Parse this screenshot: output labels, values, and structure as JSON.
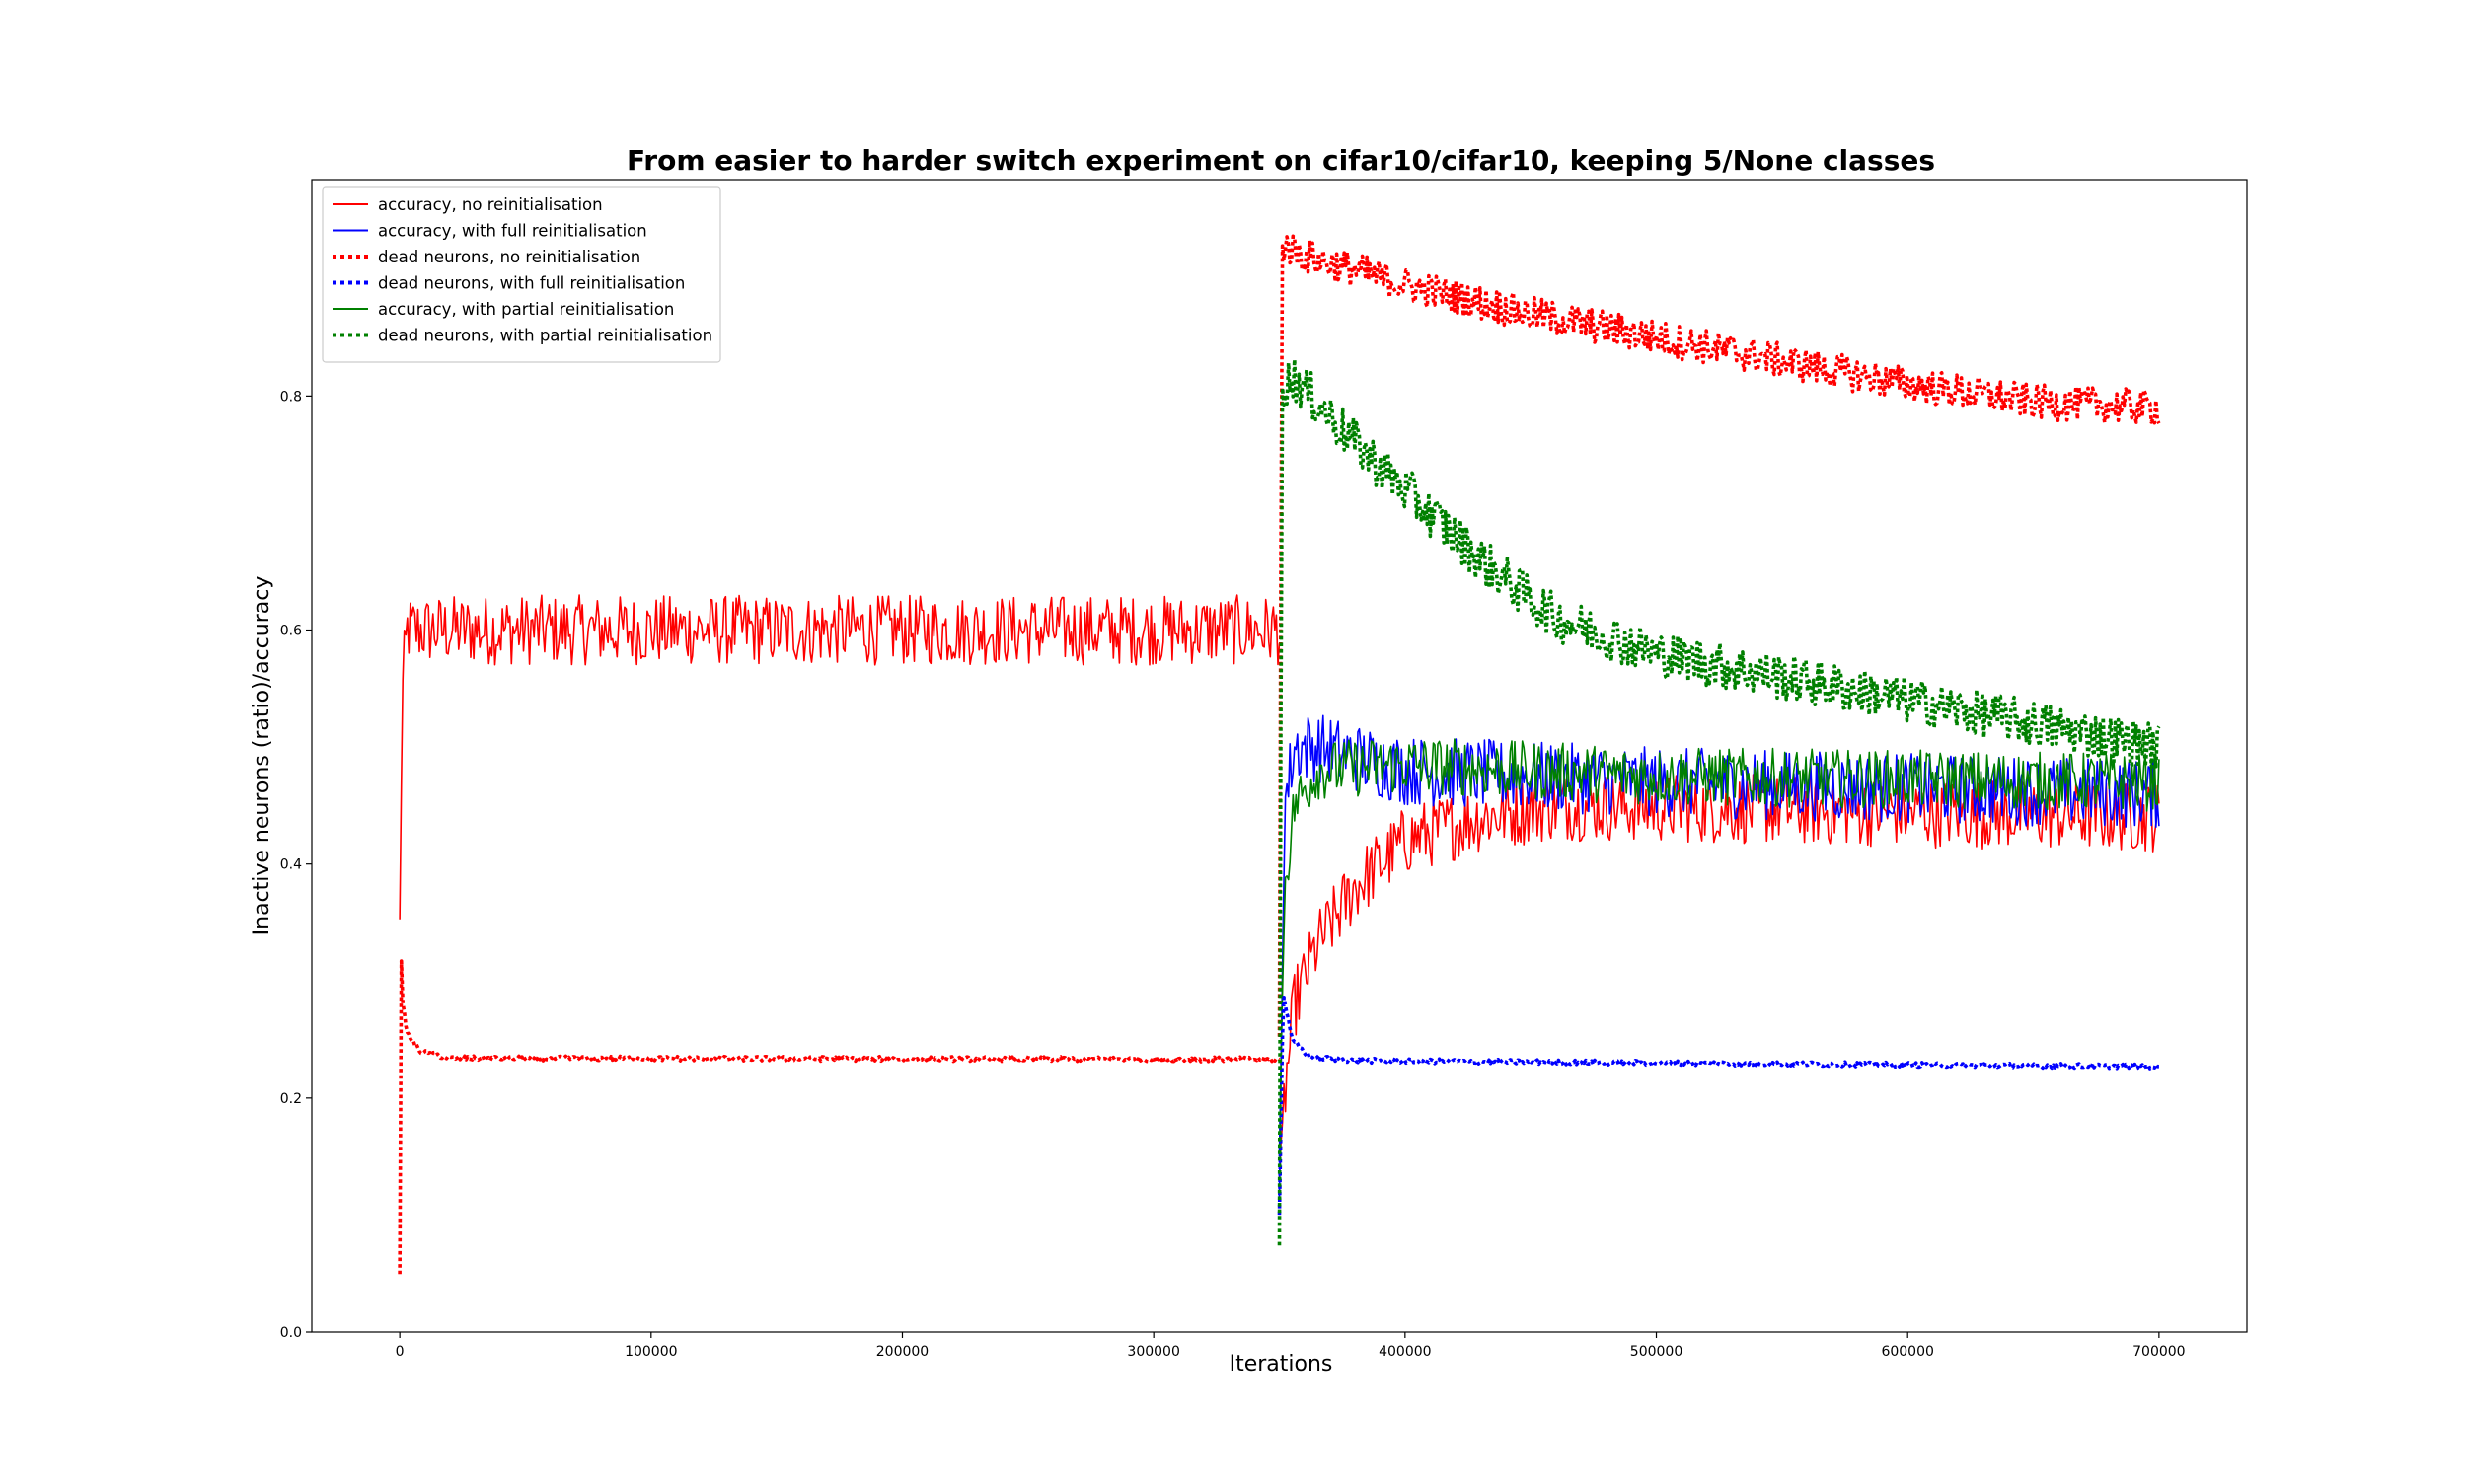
{
  "chart_data": {
    "type": "line",
    "title": "From easier to harder switch experiment on cifar10/cifar10, keeping 5/None classes",
    "xlabel": "Iterations",
    "ylabel": "Inactive neurons (ratio)/accuracy",
    "xlim": [
      -35000,
      735000
    ],
    "ylim": [
      0.0,
      0.985
    ],
    "xticks": [
      0,
      100000,
      200000,
      300000,
      400000,
      500000,
      600000,
      700000
    ],
    "xtick_labels": [
      "0",
      "100000",
      "200000",
      "300000",
      "400000",
      "500000",
      "600000",
      "700000"
    ],
    "yticks": [
      0.0,
      0.2,
      0.4,
      0.6,
      0.8
    ],
    "ytick_labels": [
      "0.0",
      "0.2",
      "0.4",
      "0.6",
      "0.8"
    ],
    "grid": false,
    "legend_position": "top-left",
    "switch_iteration": 350000,
    "series": [
      {
        "name": "accuracy, no reinitialisation",
        "color": "#ff0000",
        "style": "solid",
        "phases": [
          {
            "x_start": 0,
            "x_end": 350000,
            "points": [
              [
                0,
                0.35
              ],
              [
                1000,
                0.55
              ],
              [
                3000,
                0.6
              ],
              [
                6000,
                0.6
              ],
              [
                350000,
                0.6
              ]
            ],
            "noise": 0.03
          },
          {
            "x_start": 350000,
            "x_end": 700000,
            "points": [
              [
                350000,
                0.13
              ],
              [
                352000,
                0.2
              ],
              [
                356000,
                0.28
              ],
              [
                365000,
                0.33
              ],
              [
                380000,
                0.38
              ],
              [
                400000,
                0.42
              ],
              [
                430000,
                0.44
              ],
              [
                460000,
                0.45
              ],
              [
                700000,
                0.44
              ]
            ],
            "noise": 0.03
          }
        ]
      },
      {
        "name": "accuracy, with full reinitialisation",
        "color": "#0000ff",
        "style": "solid",
        "phases": [
          {
            "x_start": 350000,
            "x_end": 700000,
            "points": [
              [
                350000,
                0.11
              ],
              [
                352000,
                0.45
              ],
              [
                356000,
                0.5
              ],
              [
                365000,
                0.5
              ],
              [
                400000,
                0.48
              ],
              [
                500000,
                0.47
              ],
              [
                700000,
                0.46
              ]
            ],
            "noise": 0.03
          }
        ]
      },
      {
        "name": "dead neurons, no reinitialisation",
        "color": "#ff0000",
        "style": "dotted",
        "phases": [
          {
            "x_start": 0,
            "x_end": 350000,
            "points": [
              [
                0,
                0.05
              ],
              [
                400,
                0.33
              ],
              [
                1200,
                0.28
              ],
              [
                3000,
                0.255
              ],
              [
                8000,
                0.24
              ],
              [
                20000,
                0.234
              ],
              [
                350000,
                0.233
              ]
            ],
            "noise": 0.002
          },
          {
            "x_start": 350000,
            "x_end": 700000,
            "points": [
              [
                350000,
                0.25
              ],
              [
                351000,
                0.93
              ],
              [
                360000,
                0.92
              ],
              [
                400000,
                0.895
              ],
              [
                450000,
                0.87
              ],
              [
                500000,
                0.85
              ],
              [
                550000,
                0.83
              ],
              [
                600000,
                0.81
              ],
              [
                650000,
                0.795
              ],
              [
                700000,
                0.79
              ]
            ],
            "noise": 0.015
          }
        ]
      },
      {
        "name": "dead neurons, with full reinitialisation",
        "color": "#0000ff",
        "style": "dotted",
        "phases": [
          {
            "x_start": 350000,
            "x_end": 700000,
            "points": [
              [
                350000,
                0.1
              ],
              [
                351500,
                0.29
              ],
              [
                355000,
                0.25
              ],
              [
                362000,
                0.235
              ],
              [
                380000,
                0.232
              ],
              [
                500000,
                0.23
              ],
              [
                700000,
                0.227
              ]
            ],
            "noise": 0.002
          }
        ]
      },
      {
        "name": "accuracy, with partial reinitialisation",
        "color": "#008000",
        "style": "solid",
        "phases": [
          {
            "x_start": 350000,
            "x_end": 700000,
            "points": [
              [
                350000,
                0.15
              ],
              [
                352000,
                0.38
              ],
              [
                356000,
                0.45
              ],
              [
                365000,
                0.48
              ],
              [
                400000,
                0.485
              ],
              [
                500000,
                0.475
              ],
              [
                700000,
                0.47
              ]
            ],
            "noise": 0.025
          }
        ]
      },
      {
        "name": "dead neurons, with partial reinitialisation",
        "color": "#008000",
        "style": "dotted",
        "phases": [
          {
            "x_start": 350000,
            "x_end": 700000,
            "points": [
              [
                350000,
                0.07
              ],
              [
                351000,
                0.81
              ],
              [
                356000,
                0.815
              ],
              [
                380000,
                0.76
              ],
              [
                400000,
                0.72
              ],
              [
                430000,
                0.66
              ],
              [
                460000,
                0.61
              ],
              [
                500000,
                0.58
              ],
              [
                550000,
                0.56
              ],
              [
                600000,
                0.54
              ],
              [
                650000,
                0.52
              ],
              [
                700000,
                0.5
              ]
            ],
            "noise": 0.02
          }
        ]
      }
    ]
  }
}
